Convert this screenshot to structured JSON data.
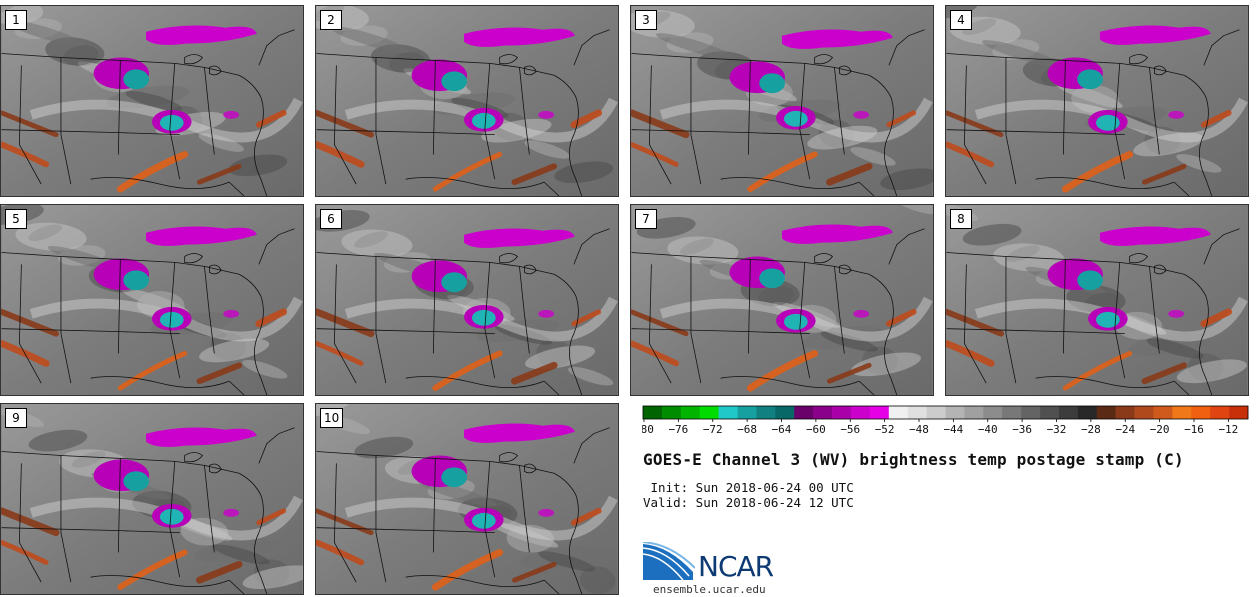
{
  "panels": [
    {
      "label": "1",
      "variant": 0
    },
    {
      "label": "2",
      "variant": 1
    },
    {
      "label": "3",
      "variant": 2
    },
    {
      "label": "4",
      "variant": 3
    },
    {
      "label": "5",
      "variant": 4
    },
    {
      "label": "6",
      "variant": 5
    },
    {
      "label": "7",
      "variant": 6
    },
    {
      "label": "8",
      "variant": 7
    },
    {
      "label": "9",
      "variant": 8
    },
    {
      "label": "10",
      "variant": 9
    }
  ],
  "colorbar": {
    "ticks": [
      "−80",
      "−76",
      "−72",
      "−68",
      "−64",
      "−60",
      "−56",
      "−52",
      "−48",
      "−44",
      "−40",
      "−36",
      "−32",
      "−28",
      "−24",
      "−20",
      "−16",
      "−12"
    ],
    "colors": [
      "#006400",
      "#008c00",
      "#00b400",
      "#00dc00",
      "#20c8c8",
      "#16a0a0",
      "#108080",
      "#086868",
      "#6a006a",
      "#8a008a",
      "#aa00aa",
      "#cc00cc",
      "#e600e6",
      "#f0f0f0",
      "#e0e0e0",
      "#cccccc",
      "#b4b4b4",
      "#a0a0a0",
      "#8c8c8c",
      "#787878",
      "#646464",
      "#505050",
      "#3c3c3c",
      "#282828",
      "#5a2a14",
      "#8a3a18",
      "#b04a1c",
      "#d05a1c",
      "#f07818",
      "#f06010",
      "#e04410",
      "#c8300a"
    ]
  },
  "title": "GOES-E Channel 3 (WV) brightness temp postage stamp (C)",
  "init_line": " Init: Sun 2018-06-24 00 UTC",
  "valid_line": "Valid: Sun 2018-06-24 12 UTC",
  "logo_text": "NCAR",
  "site": "ensemble.ucar.edu"
}
